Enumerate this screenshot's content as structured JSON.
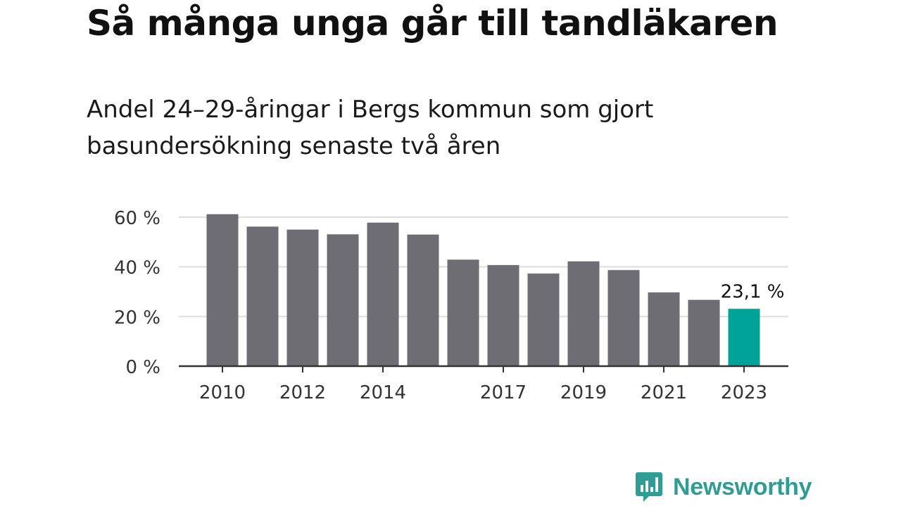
{
  "title": "Så många unga går till tandläkaren",
  "subtitle": "Andel 24–29-åringar i Bergs kommun som gjort basundersökning senaste två åren",
  "brand": {
    "name": "Newsworthy",
    "icon": "newsworthy-logo-icon",
    "color": "#2f9d94"
  },
  "colors": {
    "bar": "#6e6d73",
    "highlight": "#00a398",
    "grid": "#dcdcdc",
    "axis": "#333333"
  },
  "chart_data": {
    "type": "bar",
    "categories": [
      "2010",
      "2011",
      "2012",
      "2013",
      "2014",
      "2015",
      "2016",
      "2017",
      "2018",
      "2019",
      "2020",
      "2021",
      "2022",
      "2023"
    ],
    "values": [
      61.2,
      56.2,
      55.0,
      53.1,
      57.8,
      53.0,
      42.9,
      40.7,
      37.3,
      42.2,
      38.7,
      29.7,
      26.7,
      23.1
    ],
    "highlight_index": 13,
    "data_labels": [
      {
        "index": 13,
        "text": "23,1 %"
      }
    ],
    "x_tick_labels": [
      "2010",
      "",
      "2012",
      "",
      "2014",
      "",
      "",
      "2017",
      "",
      "2019",
      "",
      "2021",
      "",
      "2023"
    ],
    "y_ticks": [
      0,
      20,
      40,
      60
    ],
    "y_tick_labels": [
      "0 %",
      "20 %",
      "40 %",
      "60 %"
    ],
    "ylim": [
      0,
      60
    ],
    "grid": true,
    "legend": "none",
    "xlabel": "",
    "ylabel": ""
  }
}
